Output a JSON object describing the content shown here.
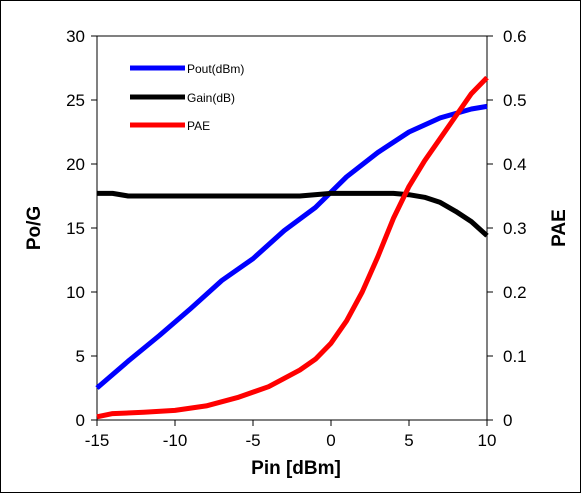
{
  "chart_data": {
    "type": "line",
    "xlabel": "Pin [dBm]",
    "ylabel_left": "Po/G",
    "ylabel_right": "PAE",
    "xlim": [
      -15,
      10
    ],
    "ylim_left": [
      0,
      30
    ],
    "ylim_right": [
      0,
      0.6
    ],
    "x_ticks": [
      -15,
      -10,
      -5,
      0,
      5,
      10
    ],
    "y_left_ticks": [
      0,
      5,
      10,
      15,
      20,
      25,
      30
    ],
    "y_right_ticks": [
      0,
      0.1,
      0.2,
      0.3,
      0.4,
      0.5,
      0.6
    ],
    "x_tick_labels": [
      "-15",
      "-10",
      "-5",
      "0",
      "5",
      "10"
    ],
    "y_left_tick_labels": [
      "0",
      "5",
      "10",
      "15",
      "20",
      "25",
      "30"
    ],
    "y_right_tick_labels": [
      "0",
      "0.1",
      "0.2",
      "0.3",
      "0.4",
      "0.5",
      "0.6"
    ],
    "grid": false,
    "legend_position": "top-left",
    "series": [
      {
        "name": "Pout(dBm)",
        "axis": "left",
        "color": "#0000ff",
        "x": [
          -15,
          -13,
          -11,
          -9,
          -7,
          -5,
          -3,
          -1,
          1,
          3,
          5,
          7,
          9,
          10
        ],
        "values": [
          2.5,
          4.6,
          6.6,
          8.7,
          10.9,
          12.6,
          14.8,
          16.6,
          19.0,
          20.9,
          22.5,
          23.6,
          24.3,
          24.5
        ]
      },
      {
        "name": "Gain(dB)",
        "axis": "left",
        "color": "#000000",
        "x": [
          -15,
          -14,
          -13,
          -10,
          -5,
          -2,
          0,
          2,
          4,
          5,
          6,
          7,
          8,
          9,
          10
        ],
        "values": [
          17.7,
          17.7,
          17.5,
          17.5,
          17.5,
          17.5,
          17.7,
          17.7,
          17.7,
          17.6,
          17.4,
          17.0,
          16.3,
          15.5,
          14.4
        ]
      },
      {
        "name": "PAE",
        "axis": "right",
        "color": "#ff0000",
        "x": [
          -15,
          -14,
          -12,
          -10,
          -8,
          -6,
          -4,
          -2,
          -1,
          0,
          1,
          2,
          3,
          4,
          5,
          6,
          7,
          8,
          9,
          10
        ],
        "values": [
          0.005,
          0.01,
          0.012,
          0.015,
          0.022,
          0.035,
          0.052,
          0.078,
          0.095,
          0.12,
          0.155,
          0.2,
          0.255,
          0.315,
          0.365,
          0.405,
          0.44,
          0.475,
          0.51,
          0.535
        ]
      }
    ]
  }
}
